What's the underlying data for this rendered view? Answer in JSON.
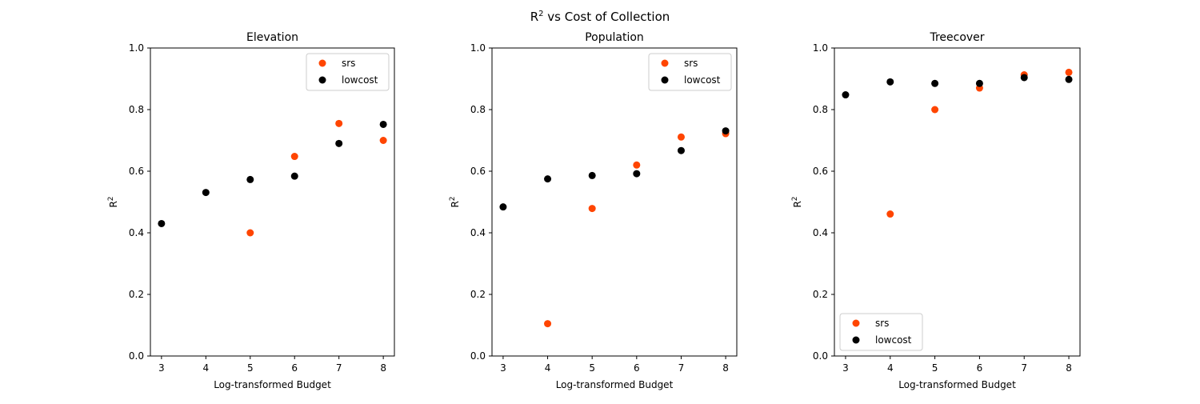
{
  "figure": {
    "title_main": "R",
    "title_sup": "2",
    "title_rest": " vs Cost of Collection"
  },
  "colors": {
    "srs": "#ff4500",
    "lowcost": "#000000",
    "legend_border": "#cccccc",
    "axes": "#000000"
  },
  "chart_data": [
    {
      "type": "scatter",
      "title": "Elevation",
      "xlabel": "Log-transformed Budget",
      "ylabel_main": "R",
      "ylabel_sup": "2",
      "xlim": [
        2.75,
        8.25
      ],
      "ylim": [
        0.0,
        1.0
      ],
      "xticks": [
        3,
        4,
        5,
        6,
        7,
        8
      ],
      "yticks": [
        0.0,
        0.2,
        0.4,
        0.6,
        0.8,
        1.0
      ],
      "grid": false,
      "legend_position": "top-right",
      "series": [
        {
          "name": "srs",
          "color": "#ff4500",
          "points": [
            [
              5,
              0.4
            ],
            [
              6,
              0.648
            ],
            [
              7,
              0.755
            ],
            [
              8,
              0.7
            ]
          ]
        },
        {
          "name": "lowcost",
          "color": "#000000",
          "points": [
            [
              3,
              0.43
            ],
            [
              4,
              0.531
            ],
            [
              5,
              0.573
            ],
            [
              6,
              0.584
            ],
            [
              7,
              0.69
            ],
            [
              8,
              0.752
            ]
          ]
        }
      ]
    },
    {
      "type": "scatter",
      "title": "Population",
      "xlabel": "Log-transformed Budget",
      "ylabel_main": "R",
      "ylabel_sup": "2",
      "xlim": [
        2.75,
        8.25
      ],
      "ylim": [
        0.0,
        1.0
      ],
      "xticks": [
        3,
        4,
        5,
        6,
        7,
        8
      ],
      "yticks": [
        0.0,
        0.2,
        0.4,
        0.6,
        0.8,
        1.0
      ],
      "grid": false,
      "legend_position": "top-right",
      "series": [
        {
          "name": "srs",
          "color": "#ff4500",
          "points": [
            [
              4,
              0.105
            ],
            [
              5,
              0.479
            ],
            [
              6,
              0.62
            ],
            [
              7,
              0.711
            ],
            [
              8,
              0.722
            ]
          ]
        },
        {
          "name": "lowcost",
          "color": "#000000",
          "points": [
            [
              3,
              0.484
            ],
            [
              4,
              0.575
            ],
            [
              5,
              0.586
            ],
            [
              6,
              0.592
            ],
            [
              7,
              0.667
            ],
            [
              8,
              0.731
            ]
          ]
        }
      ]
    },
    {
      "type": "scatter",
      "title": "Treecover",
      "xlabel": "Log-transformed Budget",
      "ylabel_main": "R",
      "ylabel_sup": "2",
      "xlim": [
        2.75,
        8.25
      ],
      "ylim": [
        0.0,
        1.0
      ],
      "xticks": [
        3,
        4,
        5,
        6,
        7,
        8
      ],
      "yticks": [
        0.0,
        0.2,
        0.4,
        0.6,
        0.8,
        1.0
      ],
      "grid": false,
      "legend_position": "lower-left",
      "series": [
        {
          "name": "srs",
          "color": "#ff4500",
          "points": [
            [
              4,
              0.461
            ],
            [
              5,
              0.8
            ],
            [
              6,
              0.87
            ],
            [
              7,
              0.913
            ],
            [
              8,
              0.921
            ]
          ]
        },
        {
          "name": "lowcost",
          "color": "#000000",
          "points": [
            [
              3,
              0.848
            ],
            [
              4,
              0.89
            ],
            [
              5,
              0.885
            ],
            [
              6,
              0.885
            ],
            [
              7,
              0.904
            ],
            [
              8,
              0.898
            ]
          ]
        }
      ]
    }
  ]
}
